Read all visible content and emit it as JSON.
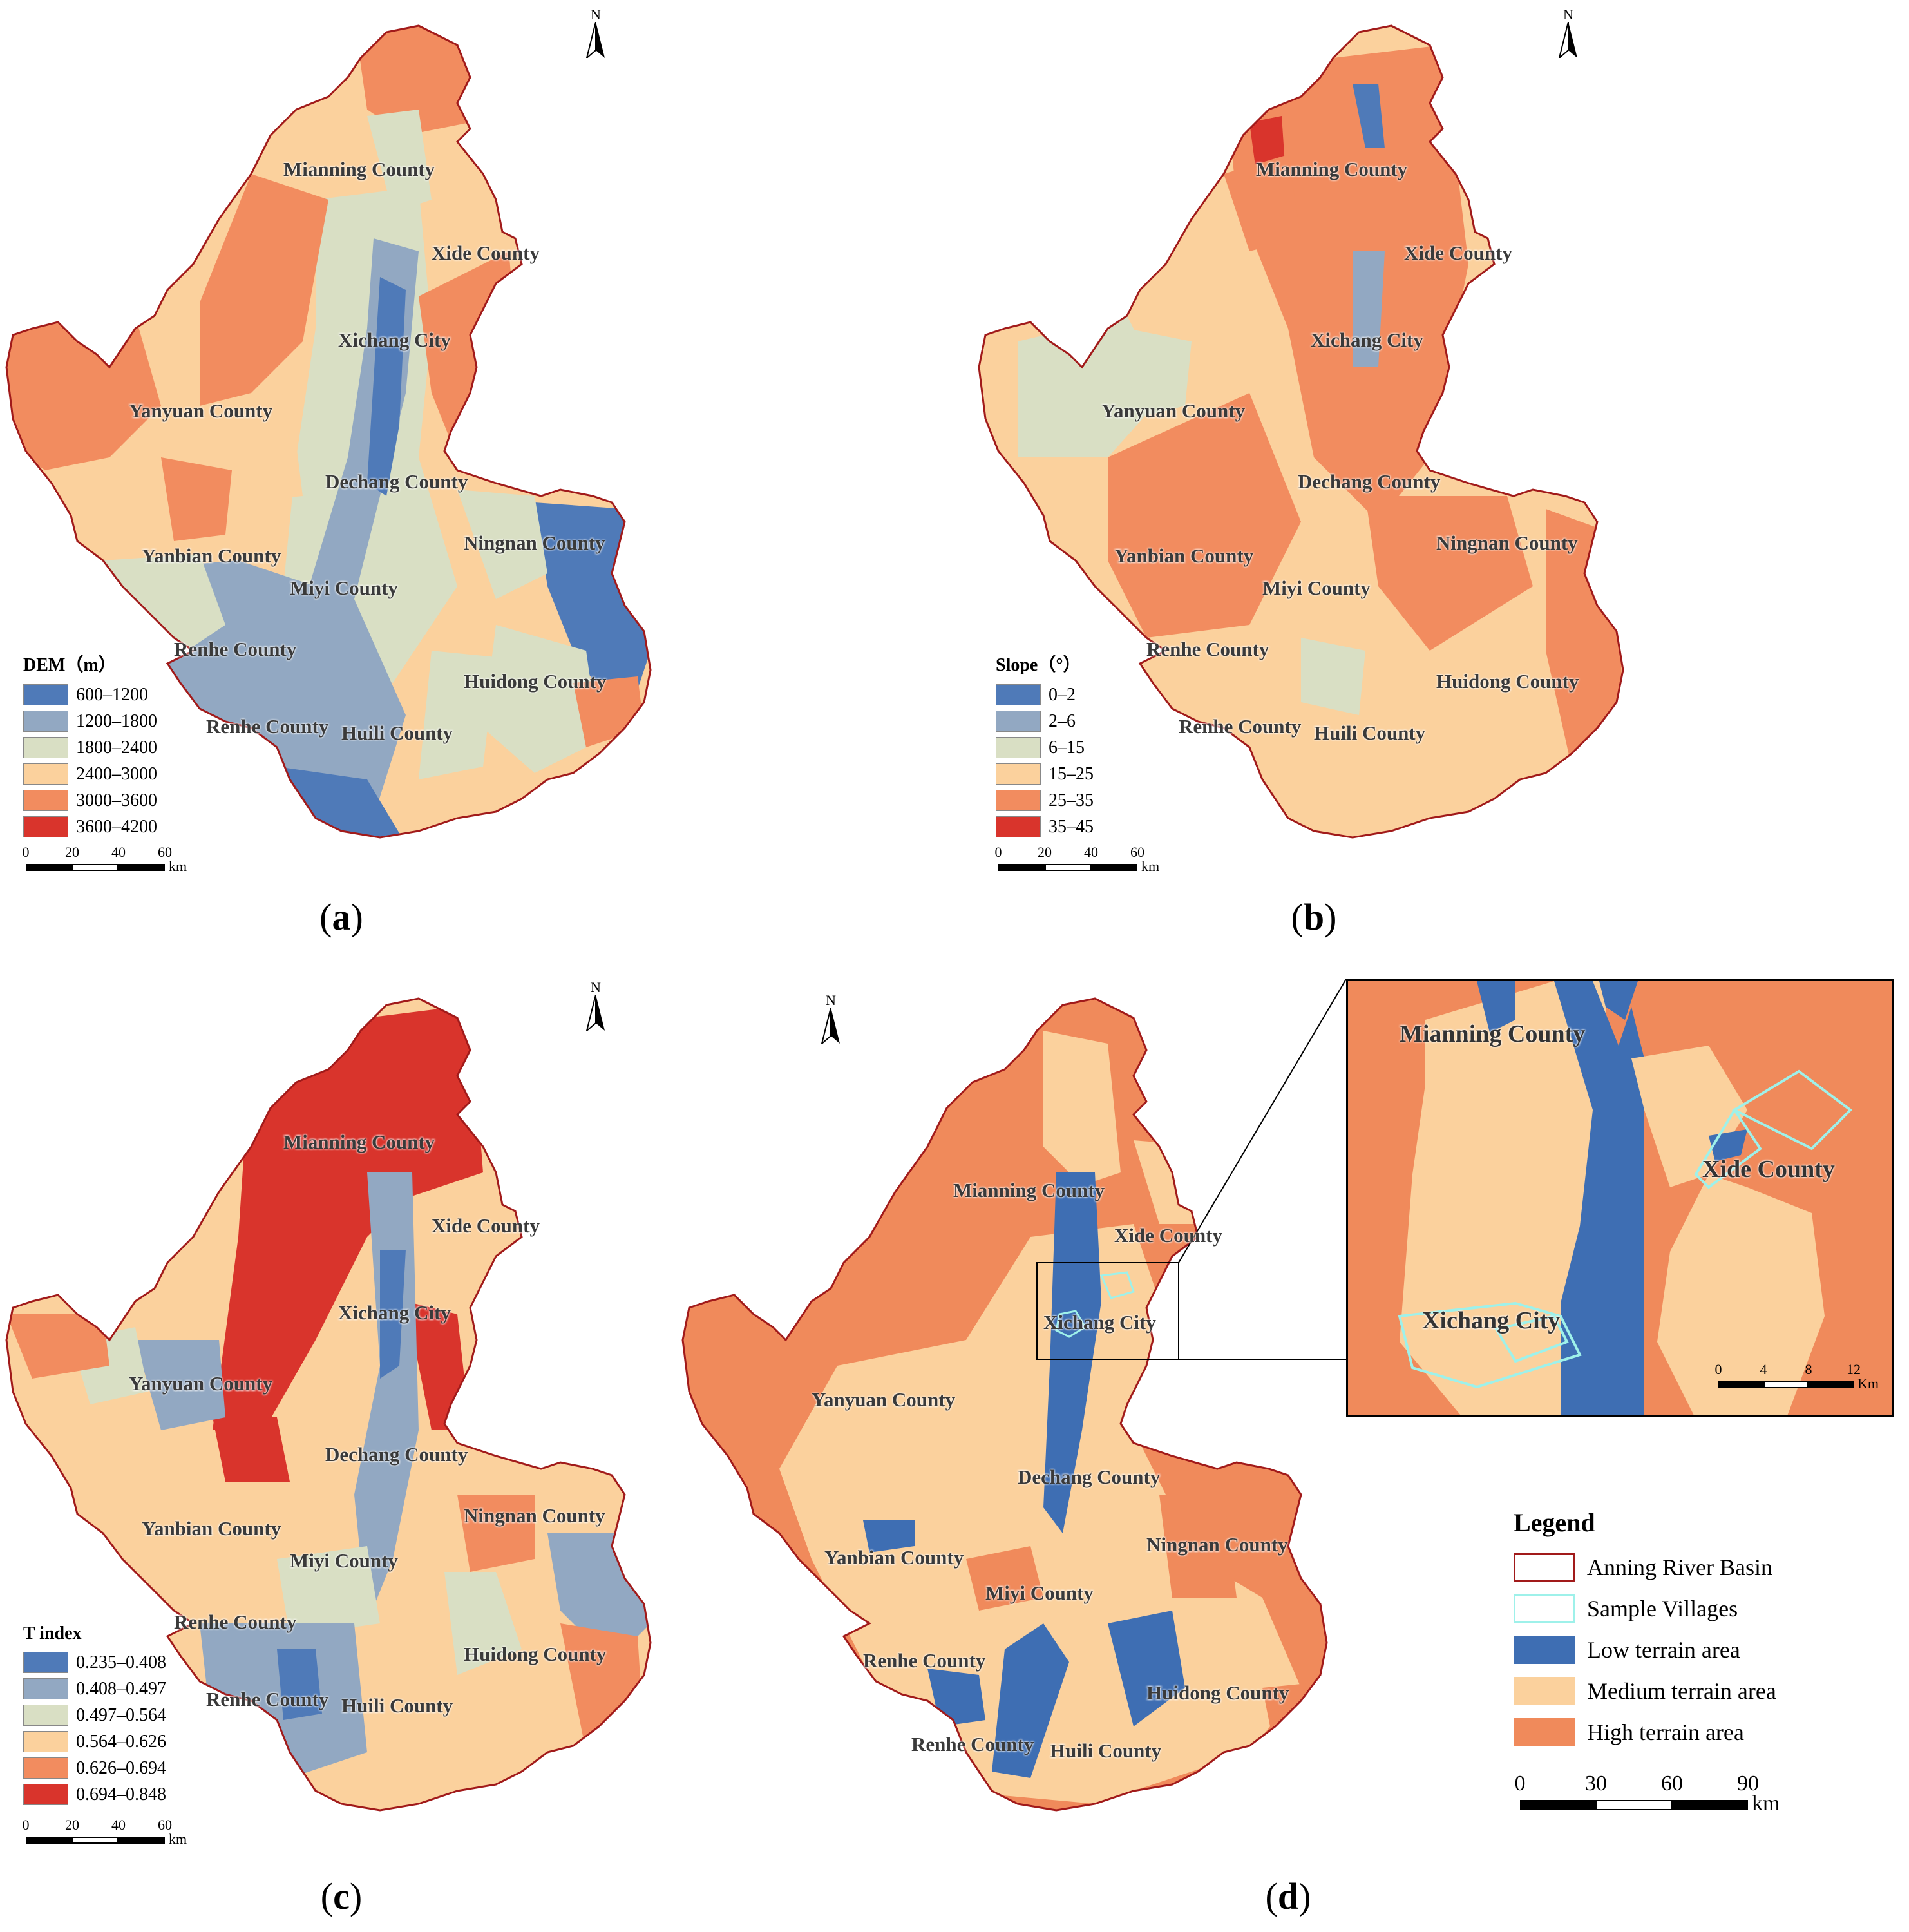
{
  "colors": {
    "c1": "#4f7ab8",
    "c2": "#92a8c2",
    "c3": "#d9dfc4",
    "c4": "#fbd19d",
    "c5": "#f28c5f",
    "c6": "#d9342c",
    "low": "#3e6eb3",
    "medium": "#fbd19d",
    "high": "#f08a5b",
    "basin_outline": "#a11a1a",
    "sample_outline": "#9ef1ea"
  },
  "north_letter": "N",
  "county_names": {
    "mianning": "Mianning County",
    "xide": "Xide County",
    "xichang": "Xichang City",
    "yanyuan": "Yanyuan County",
    "dechang": "Dechang County",
    "ningnan": "Ningnan County",
    "yanbian": "Yanbian County",
    "miyi": "Miyi County",
    "renhe": "Renhe County",
    "huidong": "Huidong County",
    "huili": "Huili County"
  },
  "panels": {
    "a": {
      "caption_open": "(",
      "caption_letter": "a",
      "caption_close": ")",
      "legend_title": "DEM（m）",
      "classes": [
        "600–1200",
        "1200–1800",
        "1800–2400",
        "2400–3000",
        "3000–3600",
        "3600–4200"
      ]
    },
    "b": {
      "caption_open": "(",
      "caption_letter": "b",
      "caption_close": ")",
      "legend_title": "Slope（°）",
      "classes": [
        "0–2",
        "2–6",
        "6–15",
        "15–25",
        "25–35",
        "35–45"
      ]
    },
    "c": {
      "caption_open": "(",
      "caption_letter": "c",
      "caption_close": ")",
      "legend_title": "T index",
      "classes": [
        "0.235–0.408",
        "0.408–0.497",
        "0.497–0.564",
        "0.564–0.626",
        "0.626–0.694",
        "0.694–0.848"
      ]
    },
    "d": {
      "caption_open": "(",
      "caption_letter": "d",
      "caption_close": ")",
      "legend_title": "Legend",
      "legend_items": [
        "Anning River Basin",
        "Sample Villages",
        "Low terrain area",
        "Medium terrain area",
        "High terrain area"
      ]
    }
  },
  "scale_small": {
    "ticks": [
      "0",
      "20",
      "40",
      "60"
    ],
    "unit": "km"
  },
  "scale_d": {
    "ticks": [
      "0",
      "30",
      "60",
      "90"
    ],
    "unit": "km"
  },
  "scale_inset": {
    "ticks": [
      "0",
      "4",
      "8",
      "12"
    ],
    "unit": "Km"
  }
}
